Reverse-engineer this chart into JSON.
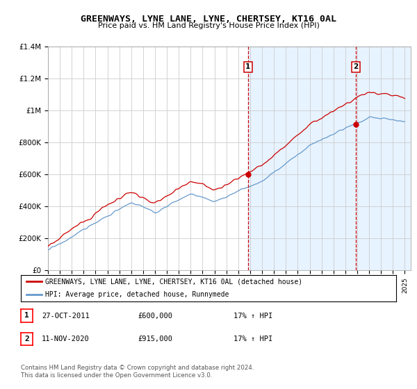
{
  "title": "GREENWAYS, LYNE LANE, LYNE, CHERTSEY, KT16 0AL",
  "subtitle": "Price paid vs. HM Land Registry's House Price Index (HPI)",
  "chart_bg": "#ffffff",
  "shaded_bg": "#ddeeff",
  "hpi_color": "#6699cc",
  "price_color": "#cc0000",
  "dashed_line_color": "#cc0000",
  "ylim": [
    0,
    1400000
  ],
  "yticks": [
    0,
    200000,
    400000,
    600000,
    800000,
    1000000,
    1200000,
    1400000
  ],
  "ytick_labels": [
    "£0",
    "£200K",
    "£400K",
    "£600K",
    "£800K",
    "£1M",
    "£1.2M",
    "£1.4M"
  ],
  "x_start_year": 1995,
  "x_end_year": 2025,
  "purchase1_year": 2011.82,
  "purchase1_price": 600000,
  "purchase2_year": 2020.87,
  "purchase2_price": 915000,
  "legend_line1": "GREENWAYS, LYNE LANE, LYNE, CHERTSEY, KT16 0AL (detached house)",
  "legend_line2": "HPI: Average price, detached house, Runnymede",
  "footer1": "Contains HM Land Registry data © Crown copyright and database right 2024.",
  "footer2": "This data is licensed under the Open Government Licence v3.0.",
  "table_row1": [
    "1",
    "27-OCT-2011",
    "£600,000",
    "17% ↑ HPI"
  ],
  "table_row2": [
    "2",
    "11-NOV-2020",
    "£915,000",
    "17% ↑ HPI"
  ]
}
